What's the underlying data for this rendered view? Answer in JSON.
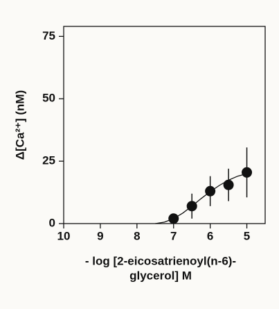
{
  "chart_data": {
    "type": "scatter",
    "ylabel": "Δ[Ca²⁺] (nM)",
    "xlabel": [
      "- log [2-eicosatrienoyl(n-6)-",
      "glycerol] M"
    ],
    "x": [
      7,
      6.5,
      6,
      5.5,
      5
    ],
    "series": [
      {
        "color": "#111111",
        "values": [
          2,
          7,
          13,
          15.5,
          20.5
        ],
        "errors": [
          2,
          5,
          6,
          6.5,
          10
        ]
      }
    ],
    "fit_curve": {
      "x": [
        7.5,
        7.25,
        7,
        6.75,
        6.5,
        6.25,
        6,
        5.75,
        5.5,
        5.25,
        5
      ],
      "values": [
        0,
        0.6,
        2,
        4.2,
        7,
        10,
        12.8,
        15.3,
        17.4,
        19,
        20
      ]
    },
    "xlim": [
      10,
      4.5
    ],
    "xticks": [
      10,
      9,
      8,
      7,
      6,
      5
    ],
    "ylim": [
      0,
      79
    ],
    "yticks": [
      0,
      25,
      50,
      75
    ]
  }
}
